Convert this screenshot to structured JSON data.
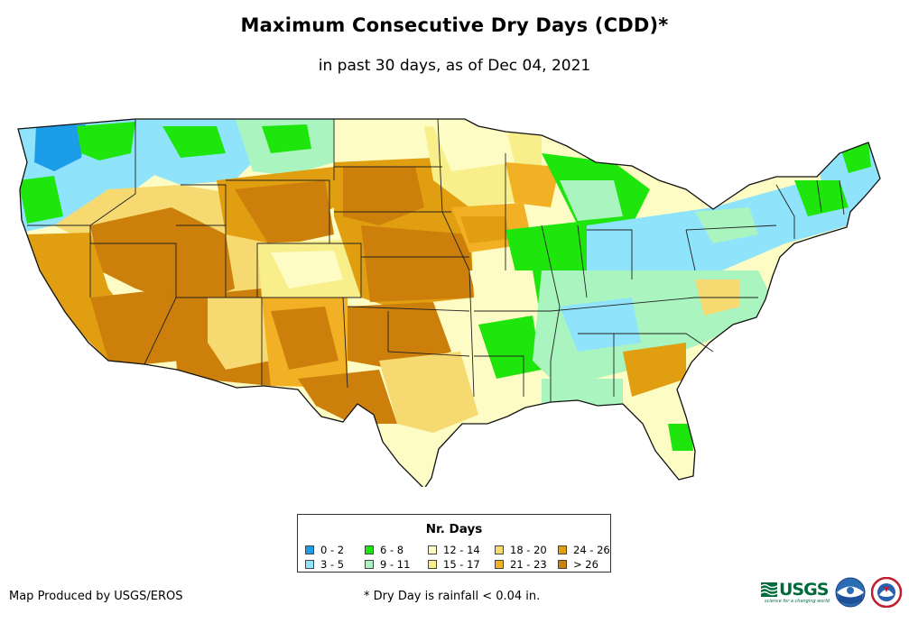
{
  "header": {
    "title": "Maximum Consecutive Dry Days (CDD)*",
    "subtitle": "in past 30 days, as of Dec 04, 2021"
  },
  "map": {
    "region": "Contiguous United States",
    "metric": "Maximum consecutive dry days",
    "palette": {
      "c0_2": "#1b9de8",
      "c3_5": "#8fe3fb",
      "c6_8": "#1ee60c",
      "c9_11": "#aaf5bf",
      "c12_14": "#fdfcc5",
      "c15_17": "#f8ee8a",
      "c18_20": "#f6d970",
      "c21_23": "#f2b124",
      "c24_26": "#e09e10",
      "c26p": "#cc7f0a"
    }
  },
  "legend": {
    "title": "Nr. Days",
    "items": [
      {
        "label": "0 - 2",
        "color": "#1b9de8"
      },
      {
        "label": "3 - 5",
        "color": "#8fe3fb"
      },
      {
        "label": "6 - 8",
        "color": "#1ee60c"
      },
      {
        "label": "9 - 11",
        "color": "#aaf5bf"
      },
      {
        "label": "12 - 14",
        "color": "#fdfcc5"
      },
      {
        "label": "15 - 17",
        "color": "#f8ee8a"
      },
      {
        "label": "18 - 20",
        "color": "#f6d970"
      },
      {
        "label": "21 - 23",
        "color": "#f2b124"
      },
      {
        "label": "24 - 26",
        "color": "#e09e10"
      },
      {
        "label": "> 26",
        "color": "#cc7f0a"
      }
    ]
  },
  "footer": {
    "credit": "Map Produced by USGS/EROS",
    "footnote": "* Dry Day is rainfall < 0.04 in."
  },
  "logos": {
    "usgs_text": "USGS",
    "usgs_tagline": "science for a changing world",
    "noaa_icon": "noaa-logo-icon",
    "nws_icon": "national-weather-service-logo-icon"
  }
}
